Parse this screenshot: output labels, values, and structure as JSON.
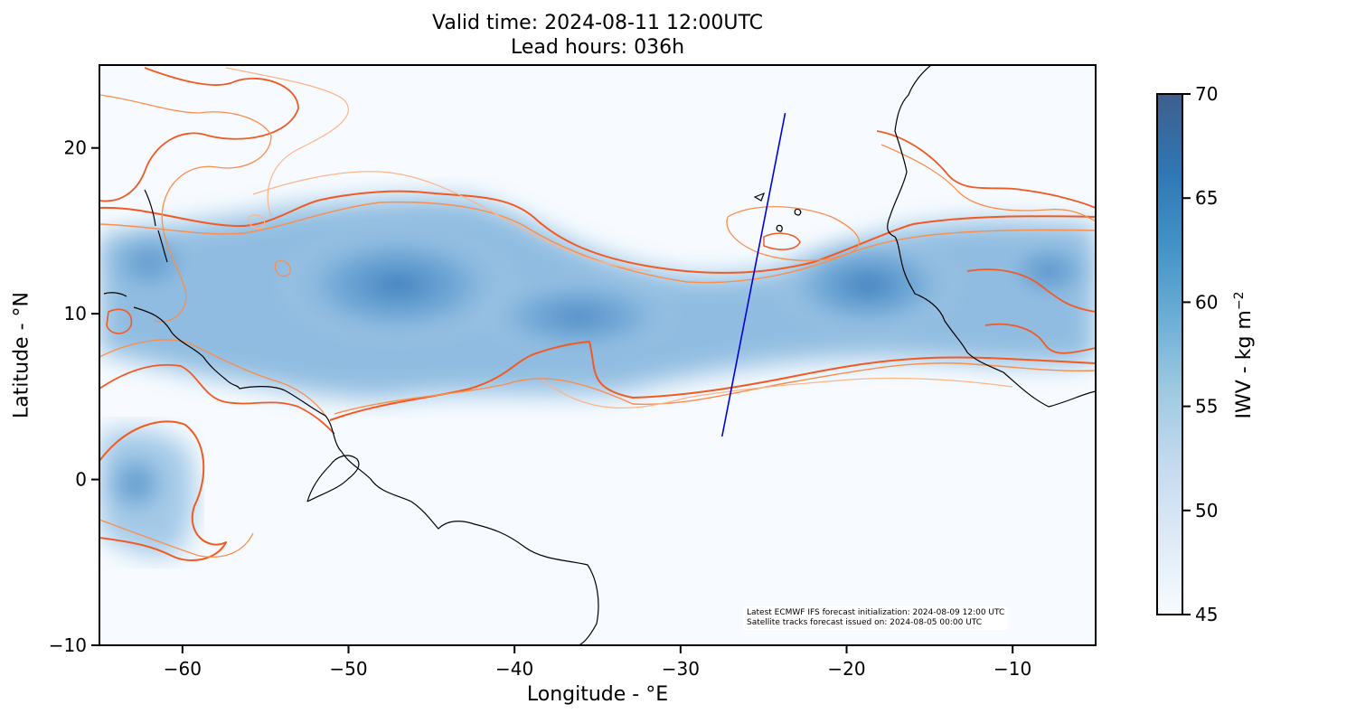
{
  "title": {
    "line1": "Valid time: 2024-08-11 12:00UTC",
    "line2": "Lead hours: 036h"
  },
  "chart_data": {
    "type": "heatmap",
    "xlabel": "Longitude - °E",
    "ylabel": "Latitude - °N",
    "xlim": [
      -65,
      -5
    ],
    "ylim": [
      -10,
      25
    ],
    "x_ticks": [
      -60,
      -50,
      -40,
      -30,
      -20,
      -10
    ],
    "x_tick_labels": [
      "−60",
      "−50",
      "−40",
      "−30",
      "−20",
      "−10"
    ],
    "y_ticks": [
      -10,
      0,
      10,
      20
    ],
    "y_tick_labels": [
      "−10",
      "0",
      "10",
      "20"
    ],
    "grid": false,
    "colorbar": {
      "label": "IWV - kg m",
      "label_sup": "−2",
      "range": [
        45,
        70
      ],
      "ticks": [
        45,
        50,
        55,
        60,
        65,
        70
      ],
      "tick_labels": [
        "45",
        "50",
        "55",
        "60",
        "65",
        "70"
      ],
      "colors": [
        "#f7fbff",
        "#deebf7",
        "#c6dbef",
        "#9ecae1",
        "#6baed6",
        "#4292c6",
        "#2171b5",
        "#08519c"
      ]
    },
    "satellite_track": {
      "color": "#0000dd",
      "points": [
        [
          -27.5,
          2.6
        ],
        [
          -23.7,
          22.1
        ]
      ]
    },
    "contour_colors": [
      "#f15a22",
      "#fb8d4b",
      "#fdb486"
    ]
  },
  "info": {
    "line1": "Latest ECMWF IFS forecast initialization: 2024-08-09 12:00 UTC",
    "line2": "Satellite tracks forecast issued on: 2024-08-05 00:00 UTC"
  }
}
